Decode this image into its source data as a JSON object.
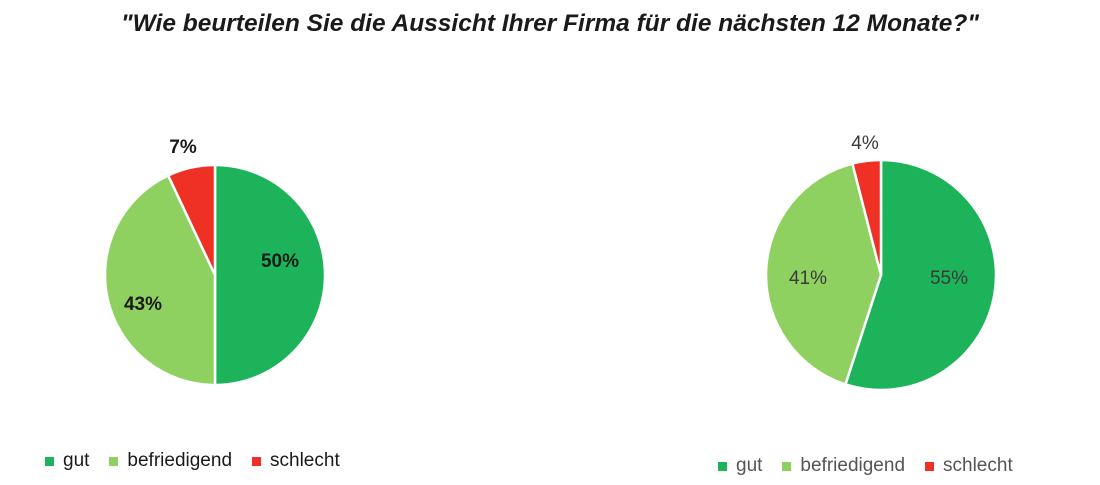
{
  "title": "\"Wie beurteilen Sie die Aussicht Ihrer Firma für die nächsten 12 Monate?\"",
  "colors": {
    "gut": "#1db35a",
    "befriedigend": "#8fd160",
    "schlecht": "#ee3124"
  },
  "chart_data": [
    {
      "type": "pie",
      "categories": [
        "gut",
        "befriedigend",
        "schlecht"
      ],
      "values": [
        50,
        43,
        7
      ],
      "labels": [
        "50%",
        "43%",
        "7%"
      ],
      "legend": [
        "gut",
        "befriedigend",
        "schlecht"
      ],
      "legend_position": "bottom"
    },
    {
      "type": "pie",
      "categories": [
        "gut",
        "befriedigend",
        "schlecht"
      ],
      "values": [
        55,
        41,
        4
      ],
      "labels": [
        "55%",
        "41%",
        "4%"
      ],
      "legend": [
        "gut",
        "befriedigend",
        "schlecht"
      ],
      "legend_position": "bottom"
    }
  ]
}
